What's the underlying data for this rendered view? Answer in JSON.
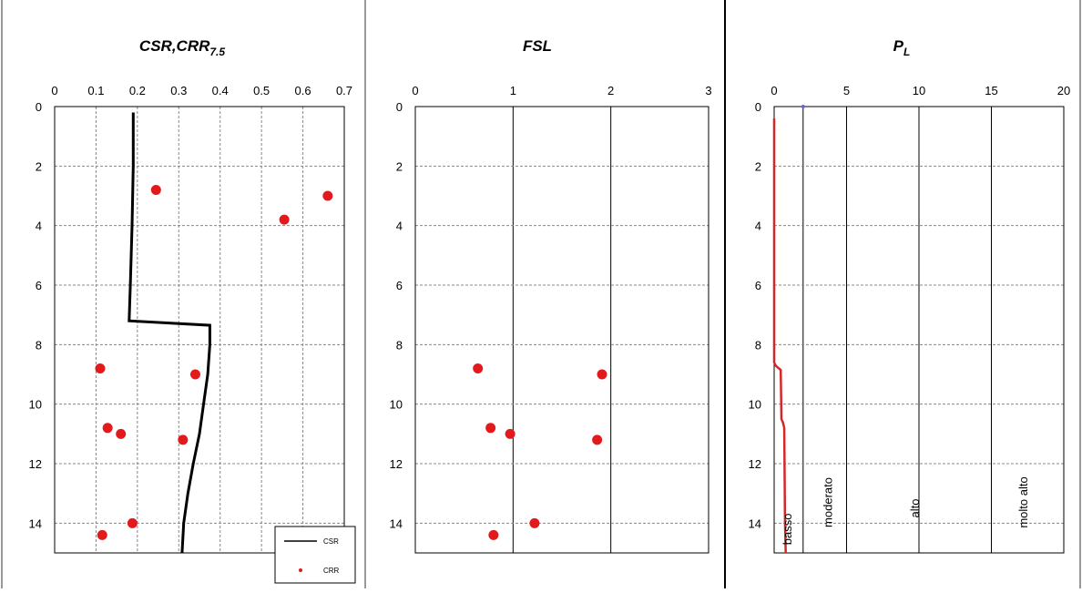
{
  "chart_data": [
    {
      "type": "line+scatter",
      "title": "CSR,CRR",
      "title_sub": "7.5",
      "x_ticks": [
        "0",
        "0.1",
        "0.2",
        "0.3",
        "0.4",
        "0.5",
        "0.6",
        "0.7"
      ],
      "y_ticks": [
        "0",
        "2",
        "4",
        "6",
        "8",
        "10",
        "12",
        "14"
      ],
      "xlim": [
        0,
        0.7
      ],
      "ylim": [
        0,
        15
      ],
      "y_inverted": true,
      "grid": true,
      "legend_position": "bottom-right",
      "series": [
        {
          "name": "CSR",
          "kind": "line",
          "color": "#000000",
          "points": [
            [
              0.19,
              0.2
            ],
            [
              0.19,
              2.0
            ],
            [
              0.187,
              4.0
            ],
            [
              0.183,
              6.0
            ],
            [
              0.18,
              7.2
            ],
            [
              0.375,
              7.35
            ],
            [
              0.375,
              8.0
            ],
            [
              0.37,
              9.0
            ],
            [
              0.36,
              10.0
            ],
            [
              0.35,
              11.0
            ],
            [
              0.335,
              12.0
            ],
            [
              0.322,
              13.0
            ],
            [
              0.312,
              14.0
            ],
            [
              0.308,
              15.0
            ]
          ]
        },
        {
          "name": "CRR",
          "kind": "scatter",
          "color": "#e31a1c",
          "points": [
            [
              0.245,
              2.8
            ],
            [
              0.66,
              3.0
            ],
            [
              0.555,
              3.8
            ],
            [
              0.11,
              8.8
            ],
            [
              0.34,
              9.0
            ],
            [
              0.128,
              10.8
            ],
            [
              0.16,
              11.0
            ],
            [
              0.31,
              11.2
            ],
            [
              0.188,
              14.0
            ],
            [
              0.115,
              14.4
            ]
          ]
        }
      ]
    },
    {
      "type": "scatter",
      "title": "FSL",
      "x_ticks": [
        "0",
        "1",
        "2",
        "3"
      ],
      "y_ticks": [
        "0",
        "2",
        "4",
        "6",
        "8",
        "10",
        "12",
        "14"
      ],
      "xlim": [
        0,
        3
      ],
      "ylim": [
        0,
        15
      ],
      "y_inverted": true,
      "grid": true,
      "series": [
        {
          "kind": "scatter",
          "color": "#e31a1c",
          "points": [
            [
              0.64,
              8.8
            ],
            [
              1.91,
              9.0
            ],
            [
              0.77,
              10.8
            ],
            [
              0.97,
              11.0
            ],
            [
              1.86,
              11.2
            ],
            [
              1.22,
              14.0
            ],
            [
              0.8,
              14.4
            ]
          ]
        }
      ]
    },
    {
      "type": "line",
      "title": "P",
      "title_sub": "L",
      "x_ticks": [
        "0",
        "5",
        "10",
        "15",
        "20"
      ],
      "y_ticks": [
        "0",
        "2",
        "4",
        "6",
        "8",
        "10",
        "12",
        "14"
      ],
      "xlim": [
        0,
        20
      ],
      "ylim": [
        0,
        15
      ],
      "y_inverted": true,
      "grid": true,
      "threshold_lines": [
        2,
        5,
        10,
        15
      ],
      "zone_labels": [
        {
          "text": "basso",
          "x": 1.2,
          "y": 14.2
        },
        {
          "text": "moderato",
          "x": 4.0,
          "y": 13.3
        },
        {
          "text": "alto",
          "x": 10.0,
          "y": 13.5
        },
        {
          "text": "molto alto",
          "x": 17.5,
          "y": 13.3
        }
      ],
      "marker": {
        "x": 2.0,
        "y": 0.0,
        "color": "#6666cc"
      },
      "series": [
        {
          "kind": "line",
          "color": "#d62728",
          "points": [
            [
              0.0,
              0.4
            ],
            [
              0.0,
              8.6
            ],
            [
              0.1,
              8.7
            ],
            [
              0.2,
              8.75
            ],
            [
              0.45,
              8.85
            ],
            [
              0.5,
              10.5
            ],
            [
              0.55,
              10.55
            ],
            [
              0.6,
              10.6
            ],
            [
              0.7,
              10.8
            ],
            [
              0.75,
              14.0
            ],
            [
              0.8,
              15.0
            ]
          ]
        }
      ]
    }
  ]
}
